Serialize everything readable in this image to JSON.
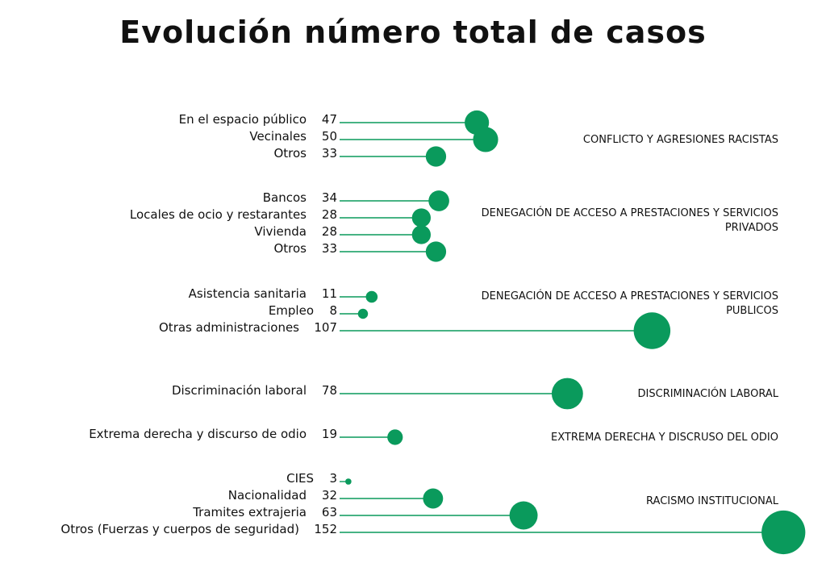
{
  "chart_data": {
    "type": "lollipop",
    "title": "Evolución número total de casos",
    "colors": {
      "accent": "#0a9a5c"
    },
    "groups": [
      {
        "name_lines": [
          "CONFLICTO  Y AGRESIONES RACISTAS"
        ],
        "items": [
          {
            "label": "En el espacio público",
            "value": 47
          },
          {
            "label": "Vecinales",
            "value": 50
          },
          {
            "label": "Otros",
            "value": 33
          }
        ]
      },
      {
        "name_lines": [
          "DENEGACIÓN DE ACCESO A PRESTACIONES Y SERVICIOS",
          "PRIVADOS"
        ],
        "items": [
          {
            "label": "Bancos",
            "value": 34
          },
          {
            "label": "Locales de ocio y restarantes",
            "value": 28
          },
          {
            "label": "Vivienda",
            "value": 28
          },
          {
            "label": "Otros",
            "value": 33
          }
        ]
      },
      {
        "name_lines": [
          "DENEGACIÓN DE ACCESO A PRESTACIONES Y SERVICIOS",
          "PUBLICOS"
        ],
        "items": [
          {
            "label": "Asistencia sanitaria",
            "value": 11
          },
          {
            "label": "Empleo",
            "value": 8
          },
          {
            "label": "Otras administraciones",
            "value": 107
          }
        ]
      },
      {
        "name_lines": [
          "DISCRIMINACIÓN LABORAL"
        ],
        "items": [
          {
            "label": "Discriminación laboral",
            "value": 78
          }
        ]
      },
      {
        "name_lines": [
          "EXTREMA DERECHA Y DISCRUSO DEL ODIO"
        ],
        "items": [
          {
            "label": "Extrema derecha y discurso de odio",
            "value": 19
          }
        ]
      },
      {
        "name_lines": [
          "RACISMO INSTITUCIONAL"
        ],
        "items": [
          {
            "label": "CIES",
            "value": 3
          },
          {
            "label": "Nacionalidad",
            "value": 32
          },
          {
            "label": "Tramites extrajeria",
            "value": 63
          },
          {
            "label": "Otros (Fuerzas y cuerpos de seguridad)",
            "value": 152
          }
        ]
      }
    ]
  }
}
